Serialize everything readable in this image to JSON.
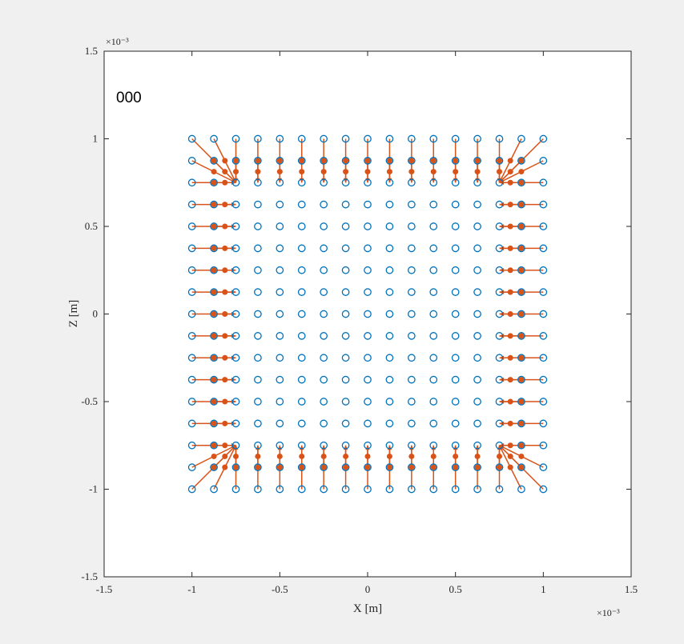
{
  "chart_data": {
    "type": "scatter",
    "annotation": "000",
    "xlabel": "X [m]",
    "ylabel": "Z [m]",
    "xlim": [
      -1.5,
      1.5
    ],
    "ylim": [
      -1.5,
      1.5
    ],
    "x_exponent": "×10⁻³",
    "y_exponent": "×10⁻³",
    "x_ticks": [
      "-1.5",
      "-1",
      "-0.5",
      "0",
      "0.5",
      "1",
      "1.5"
    ],
    "y_ticks": [
      "-1.5",
      "-1",
      "-0.5",
      "0",
      "0.5",
      "1",
      "1.5"
    ],
    "grid": false,
    "marker": "circle",
    "marker_color": "#0072bd",
    "vector_color": "#d95319",
    "grid_min": -1,
    "grid_max": 1,
    "grid_count": 17,
    "scale": 0.001,
    "vector_field": "reference_grid_displacement_toward_interior_edges"
  }
}
